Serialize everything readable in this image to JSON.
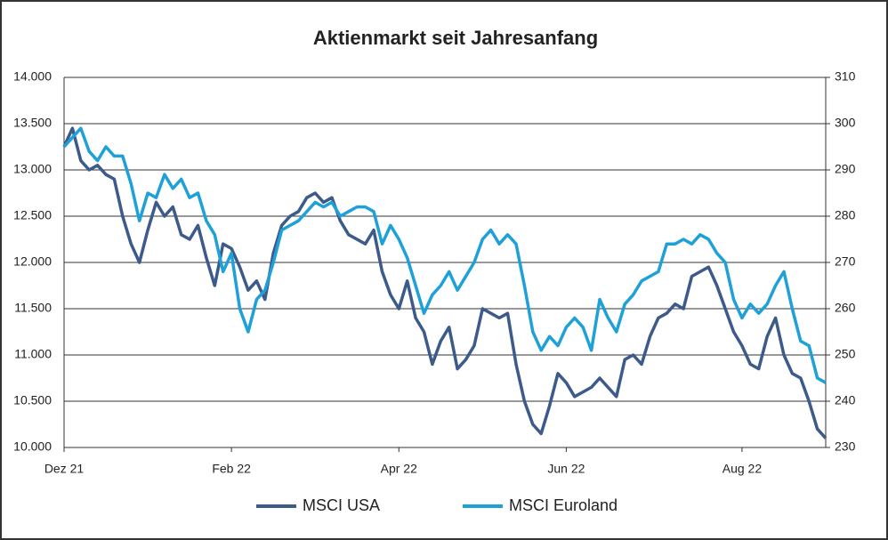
{
  "chart_data": {
    "type": "line",
    "title": "Aktienmarkt seit Jahresanfang",
    "categories": [
      "Dez 21",
      null,
      null,
      null,
      null,
      null,
      null,
      null,
      null,
      null,
      null,
      null,
      null,
      null,
      null,
      null,
      null,
      null,
      null,
      null,
      "Feb 22",
      null,
      null,
      null,
      null,
      null,
      null,
      null,
      null,
      null,
      null,
      null,
      null,
      null,
      null,
      null,
      null,
      null,
      null,
      null,
      "Apr 22",
      null,
      null,
      null,
      null,
      null,
      null,
      null,
      null,
      null,
      null,
      null,
      null,
      null,
      null,
      null,
      null,
      null,
      null,
      null,
      "Jun 22",
      null,
      null,
      null,
      null,
      null,
      null,
      null,
      null,
      null,
      null,
      null,
      null,
      null,
      null,
      null,
      null,
      null,
      null,
      null,
      null,
      "Aug 22",
      null,
      null,
      null,
      null,
      null,
      null,
      null,
      null,
      null,
      null
    ],
    "series": [
      {
        "name": "MSCI USA",
        "color": "#3c5a8a",
        "values": [
          13250,
          13450,
          13100,
          13000,
          13050,
          12950,
          12900,
          12500,
          12200,
          12000,
          12350,
          12650,
          12500,
          12600,
          12300,
          12250,
          12400,
          12050,
          11750,
          12200,
          12150,
          11950,
          11700,
          11800,
          11600,
          12100,
          12400,
          12500,
          12550,
          12700,
          12750,
          12650,
          12700,
          12450,
          12300,
          12250,
          12200,
          12350,
          11900,
          11650,
          11500,
          11800,
          11400,
          11250,
          10900,
          11150,
          11300,
          10850,
          10950,
          11100,
          11500,
          11450,
          11400,
          11450,
          10900,
          10500,
          10250,
          10150,
          10450,
          10800,
          10700,
          10550,
          10600,
          10650,
          10750,
          10650,
          10550,
          10950,
          11000,
          10900,
          11200,
          11400,
          11450,
          11550,
          11500,
          11850,
          11900,
          11950,
          11750,
          11500,
          11250,
          11100,
          10900,
          10850,
          11200,
          11400,
          11000,
          10800,
          10750,
          10500,
          10200,
          10100
        ]
      },
      {
        "name": "MSCI Euroland",
        "color": "#1ea0d8",
        "axis": "y2",
        "values": [
          295,
          297,
          299,
          294,
          292,
          295,
          293,
          293,
          287,
          279,
          285,
          284,
          289,
          286,
          288,
          284,
          285,
          279,
          276,
          268,
          272,
          260,
          255,
          262,
          264,
          270,
          277,
          278,
          279,
          281,
          283,
          282,
          283,
          280,
          281,
          282,
          282,
          281,
          274,
          278,
          275,
          271,
          265,
          259,
          263,
          265,
          268,
          264,
          267,
          270,
          275,
          277,
          274,
          276,
          274,
          265,
          255,
          251,
          254,
          252,
          256,
          258,
          256,
          251,
          262,
          258,
          255,
          261,
          263,
          266,
          267,
          268,
          274,
          274,
          275,
          274,
          276,
          275,
          272,
          270,
          262,
          258,
          261,
          259,
          261,
          265,
          268,
          260,
          253,
          252,
          245,
          244
        ]
      }
    ],
    "ylim": [
      10000,
      14000
    ],
    "yticks": [
      {
        "value": 10000,
        "label": "10.000"
      },
      {
        "value": 10500,
        "label": "10.500"
      },
      {
        "value": 11000,
        "label": "11.000"
      },
      {
        "value": 11500,
        "label": "11.500"
      },
      {
        "value": 12000,
        "label": "12.000"
      },
      {
        "value": 12500,
        "label": "12.500"
      },
      {
        "value": 13000,
        "label": "13.000"
      },
      {
        "value": 13500,
        "label": "13.500"
      },
      {
        "value": 14000,
        "label": "14.000"
      }
    ],
    "y2lim": [
      230,
      310
    ],
    "y2ticks": [
      230,
      240,
      250,
      260,
      270,
      280,
      290,
      300,
      310
    ],
    "grid": true
  }
}
